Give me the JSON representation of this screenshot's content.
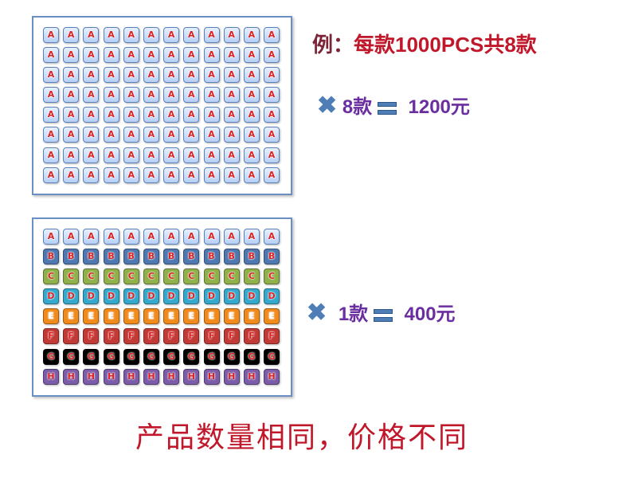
{
  "box1": {
    "rows": [
      "A",
      "A",
      "A",
      "A",
      "A",
      "A",
      "A",
      "A"
    ],
    "columns": 12
  },
  "box2": {
    "rows": [
      "A",
      "B",
      "C",
      "D",
      "E",
      "F",
      "G",
      "H"
    ],
    "columns": 12
  },
  "tile_colors": {
    "A": "#c9dcf8",
    "B": "#4f78b0",
    "C": "#8fb04a",
    "D": "#36a8cc",
    "E": "#f08a1c",
    "F": "#c23a36",
    "G": "#000000",
    "H": "#7a5ca8"
  },
  "example": {
    "prefix": "例：",
    "text": "每款1000PCS共8款"
  },
  "eq1": {
    "qty": "8款",
    "price": "1200元"
  },
  "eq2": {
    "qty": "1款",
    "price": "400元"
  },
  "footer": "产品数量相同，价格不同"
}
